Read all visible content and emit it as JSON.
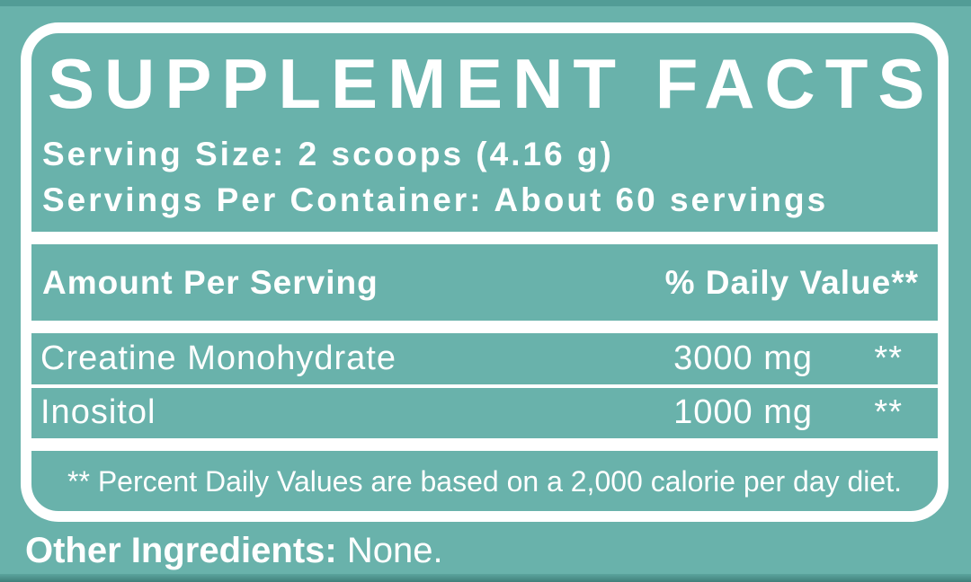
{
  "label": {
    "title": "SUPPLEMENT FACTS",
    "serving_size": "Serving Size: 2 scoops (4.16 g)",
    "servings_per_container": "Servings Per Container: About 60 servings",
    "columns": {
      "amount_header": "Amount Per Serving",
      "daily_value_header": "% Daily Value**"
    },
    "rows": [
      {
        "name": "Creatine Monohydrate",
        "amount": "3000 mg",
        "daily_value": "**"
      },
      {
        "name": "Inositol",
        "amount": "1000 mg",
        "daily_value": "**"
      }
    ],
    "footnote": "** Percent Daily Values are based on a 2,000 calorie per day diet.",
    "other_ingredients_label": "Other Ingredients:",
    "other_ingredients_value": " None."
  },
  "colors": {
    "background_teal": "#69b2ab",
    "panel_border": "#ffffff",
    "text": "#ffffff",
    "top_edge_shade": "#529c96",
    "bottom_edge_shade": "#407f7a"
  }
}
